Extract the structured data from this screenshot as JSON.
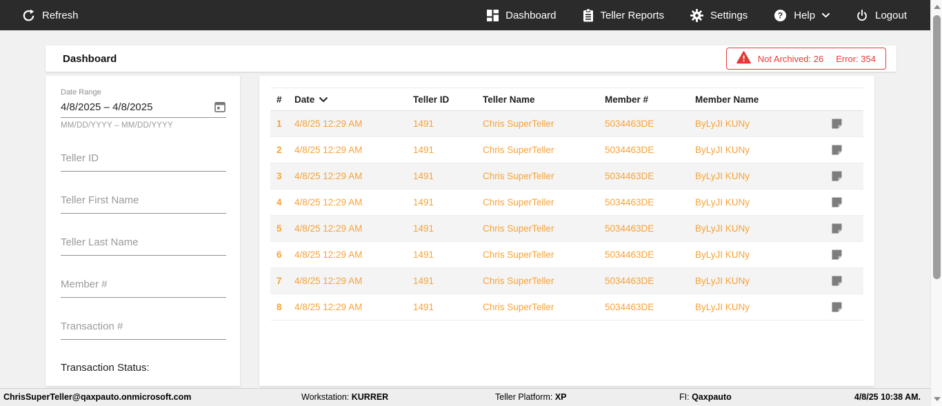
{
  "navbar": {
    "refresh_label": "Refresh",
    "dashboard_label": "Dashboard",
    "teller_reports_label": "Teller Reports",
    "settings_label": "Settings",
    "help_label": "Help",
    "logout_label": "Logout"
  },
  "header": {
    "title": "Dashboard",
    "alert": {
      "not_archived_text": "Not Archived: 26",
      "error_text": "Error: 354"
    }
  },
  "filters": {
    "date_range": {
      "label": "Date Range",
      "value": "4/8/2025 – 4/8/2025",
      "helper": "MM/DD/YYYY – MM/DD/YYYY"
    },
    "teller_id_placeholder": "Teller ID",
    "teller_first_name_placeholder": "Teller First Name",
    "teller_last_name_placeholder": "Teller Last Name",
    "member_number_placeholder": "Member #",
    "transaction_number_placeholder": "Transaction #",
    "transaction_status_label": "Transaction Status:"
  },
  "table": {
    "columns": [
      "#",
      "Date",
      "Teller ID",
      "Teller Name",
      "Member #",
      "Member Name"
    ],
    "sorted_by": "Date",
    "rows": [
      {
        "num": "1",
        "date": "4/8/25 12:29 AM",
        "teller_id": "1491",
        "teller_name": "Chris SuperTeller",
        "member_number": "5034463DE",
        "member_name": "ByLyJI KUNy"
      },
      {
        "num": "2",
        "date": "4/8/25 12:29 AM",
        "teller_id": "1491",
        "teller_name": "Chris SuperTeller",
        "member_number": "5034463DE",
        "member_name": "ByLyJI KUNy"
      },
      {
        "num": "3",
        "date": "4/8/25 12:29 AM",
        "teller_id": "1491",
        "teller_name": "Chris SuperTeller",
        "member_number": "5034463DE",
        "member_name": "ByLyJI KUNy"
      },
      {
        "num": "4",
        "date": "4/8/25 12:29 AM",
        "teller_id": "1491",
        "teller_name": "Chris SuperTeller",
        "member_number": "5034463DE",
        "member_name": "ByLyJI KUNy"
      },
      {
        "num": "5",
        "date": "4/8/25 12:29 AM",
        "teller_id": "1491",
        "teller_name": "Chris SuperTeller",
        "member_number": "5034463DE",
        "member_name": "ByLyJI KUNy"
      },
      {
        "num": "6",
        "date": "4/8/25 12:29 AM",
        "teller_id": "1491",
        "teller_name": "Chris SuperTeller",
        "member_number": "5034463DE",
        "member_name": "ByLyJI KUNy"
      },
      {
        "num": "7",
        "date": "4/8/25 12:29 AM",
        "teller_id": "1491",
        "teller_name": "Chris SuperTeller",
        "member_number": "5034463DE",
        "member_name": "ByLyJI KUNy"
      },
      {
        "num": "8",
        "date": "4/8/25 12:29 AM",
        "teller_id": "1491",
        "teller_name": "Chris SuperTeller",
        "member_number": "5034463DE",
        "member_name": "ByLyJI KUNy"
      }
    ]
  },
  "statusbar": {
    "user": "ChrisSuperTeller@qaxpauto.onmicrosoft.com",
    "workstation_label": "Workstation:",
    "workstation": "KURRER",
    "platform_label": "Teller Platform:",
    "platform": "XP",
    "fi_label": "FI:",
    "fi": "Qaxpauto",
    "datetime": "4/8/25 10:38 AM."
  },
  "colors": {
    "accent_orange": "#f7a237",
    "alert_red": "#e53935",
    "navbar_bg": "#2b2b2b"
  }
}
